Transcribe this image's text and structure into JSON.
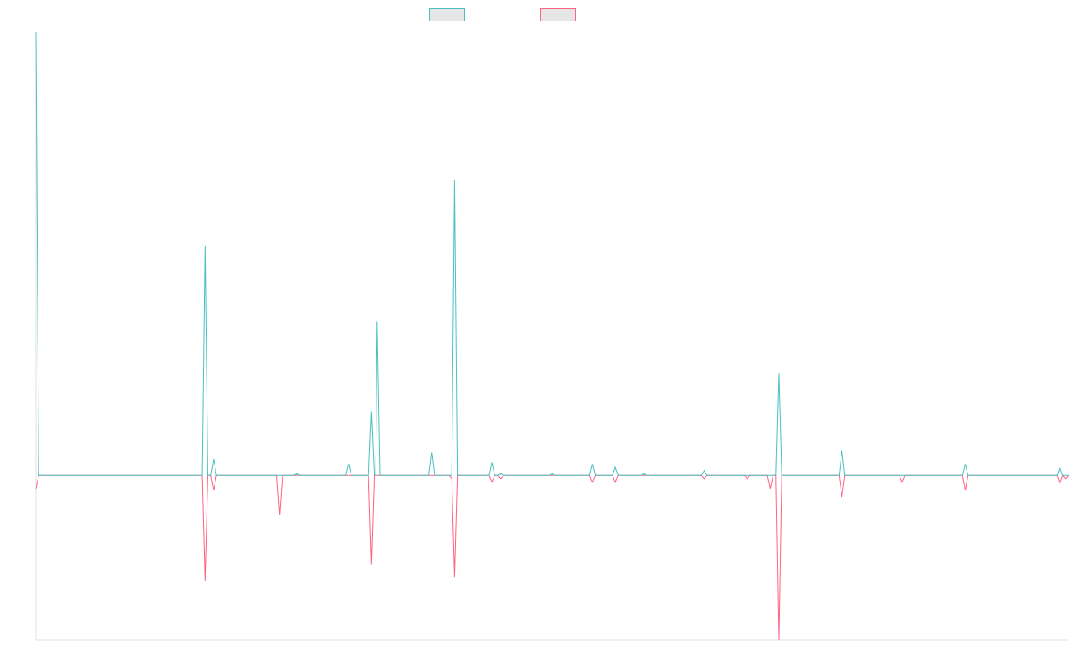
{
  "colors": {
    "series_a": "#4bc0c0",
    "series_b": "#ff6384",
    "axis": "#e0e0e0",
    "legend_fill": "#e6e6e6"
  },
  "chart_data": {
    "type": "line",
    "title": "",
    "xlabel": "",
    "ylabel": "",
    "legend": "top-center",
    "grid": false,
    "ylim": [
      -100,
      270
    ],
    "x_count": 360,
    "series": [
      {
        "name": "",
        "color_key": "series_a",
        "points": [
          [
            0,
            270
          ],
          [
            1,
            0
          ],
          [
            58,
            0
          ],
          [
            59,
            140
          ],
          [
            60,
            0
          ],
          [
            61,
            0
          ],
          [
            62,
            10
          ],
          [
            63,
            0
          ],
          [
            90,
            0
          ],
          [
            91,
            1
          ],
          [
            92,
            0
          ],
          [
            108,
            0
          ],
          [
            109,
            7
          ],
          [
            110,
            0
          ],
          [
            116,
            0
          ],
          [
            117,
            39
          ],
          [
            118,
            0
          ],
          [
            118.5,
            0
          ],
          [
            119,
            94
          ],
          [
            120,
            0
          ],
          [
            137,
            0
          ],
          [
            138,
            14
          ],
          [
            139,
            0
          ],
          [
            144,
            0
          ],
          [
            145,
            0
          ],
          [
            146,
            180
          ],
          [
            147,
            0
          ],
          [
            158,
            0
          ],
          [
            159,
            8
          ],
          [
            160,
            0
          ],
          [
            161,
            0
          ],
          [
            162,
            1
          ],
          [
            163,
            0
          ],
          [
            179,
            0
          ],
          [
            180,
            1
          ],
          [
            181,
            0
          ],
          [
            193,
            0
          ],
          [
            194,
            7
          ],
          [
            195,
            0
          ],
          [
            201,
            0
          ],
          [
            202,
            5
          ],
          [
            203,
            0
          ],
          [
            211,
            0
          ],
          [
            212,
            1
          ],
          [
            213,
            0
          ],
          [
            232,
            0
          ],
          [
            233,
            3
          ],
          [
            234,
            0
          ],
          [
            247,
            0
          ],
          [
            248,
            0
          ],
          [
            249,
            0
          ],
          [
            257,
            0
          ],
          [
            258,
            0
          ],
          [
            259,
            62
          ],
          [
            260,
            0
          ],
          [
            280,
            0
          ],
          [
            281,
            15
          ],
          [
            282,
            0
          ],
          [
            301,
            0
          ],
          [
            302,
            0
          ],
          [
            303,
            0
          ],
          [
            323,
            0
          ],
          [
            324,
            7
          ],
          [
            325,
            0
          ],
          [
            356,
            0
          ],
          [
            357,
            5
          ],
          [
            358,
            0
          ],
          [
            359,
            0
          ],
          [
            360,
            0
          ]
        ]
      },
      {
        "name": "",
        "color_key": "series_b",
        "points": [
          [
            0,
            -8
          ],
          [
            1,
            0
          ],
          [
            58,
            0
          ],
          [
            59,
            -64
          ],
          [
            60,
            0
          ],
          [
            61,
            0
          ],
          [
            62,
            -9
          ],
          [
            63,
            0
          ],
          [
            84,
            0
          ],
          [
            85,
            -24
          ],
          [
            86,
            0
          ],
          [
            91,
            0
          ],
          [
            92,
            0
          ],
          [
            116,
            0
          ],
          [
            117,
            -54
          ],
          [
            118,
            0
          ],
          [
            144,
            0
          ],
          [
            145,
            -2
          ],
          [
            146,
            -62
          ],
          [
            147,
            0
          ],
          [
            158,
            0
          ],
          [
            159,
            -4
          ],
          [
            160,
            0
          ],
          [
            161,
            0
          ],
          [
            162,
            -2
          ],
          [
            163,
            0
          ],
          [
            179,
            0
          ],
          [
            180,
            0
          ],
          [
            181,
            0
          ],
          [
            193,
            0
          ],
          [
            194,
            -4
          ],
          [
            195,
            0
          ],
          [
            201,
            0
          ],
          [
            202,
            -4
          ],
          [
            203,
            0
          ],
          [
            232,
            0
          ],
          [
            233,
            -2
          ],
          [
            234,
            0
          ],
          [
            247,
            0
          ],
          [
            248,
            -2
          ],
          [
            249,
            0
          ],
          [
            255,
            0
          ],
          [
            256,
            -8
          ],
          [
            257,
            0
          ],
          [
            258,
            0
          ],
          [
            259,
            -100
          ],
          [
            260,
            0
          ],
          [
            280,
            0
          ],
          [
            281,
            -13
          ],
          [
            282,
            0
          ],
          [
            301,
            0
          ],
          [
            302,
            -4
          ],
          [
            303,
            0
          ],
          [
            323,
            0
          ],
          [
            324,
            -9
          ],
          [
            325,
            0
          ],
          [
            356,
            0
          ],
          [
            357,
            -5
          ],
          [
            358,
            0
          ],
          [
            359,
            -2
          ],
          [
            360,
            0
          ]
        ]
      }
    ]
  }
}
